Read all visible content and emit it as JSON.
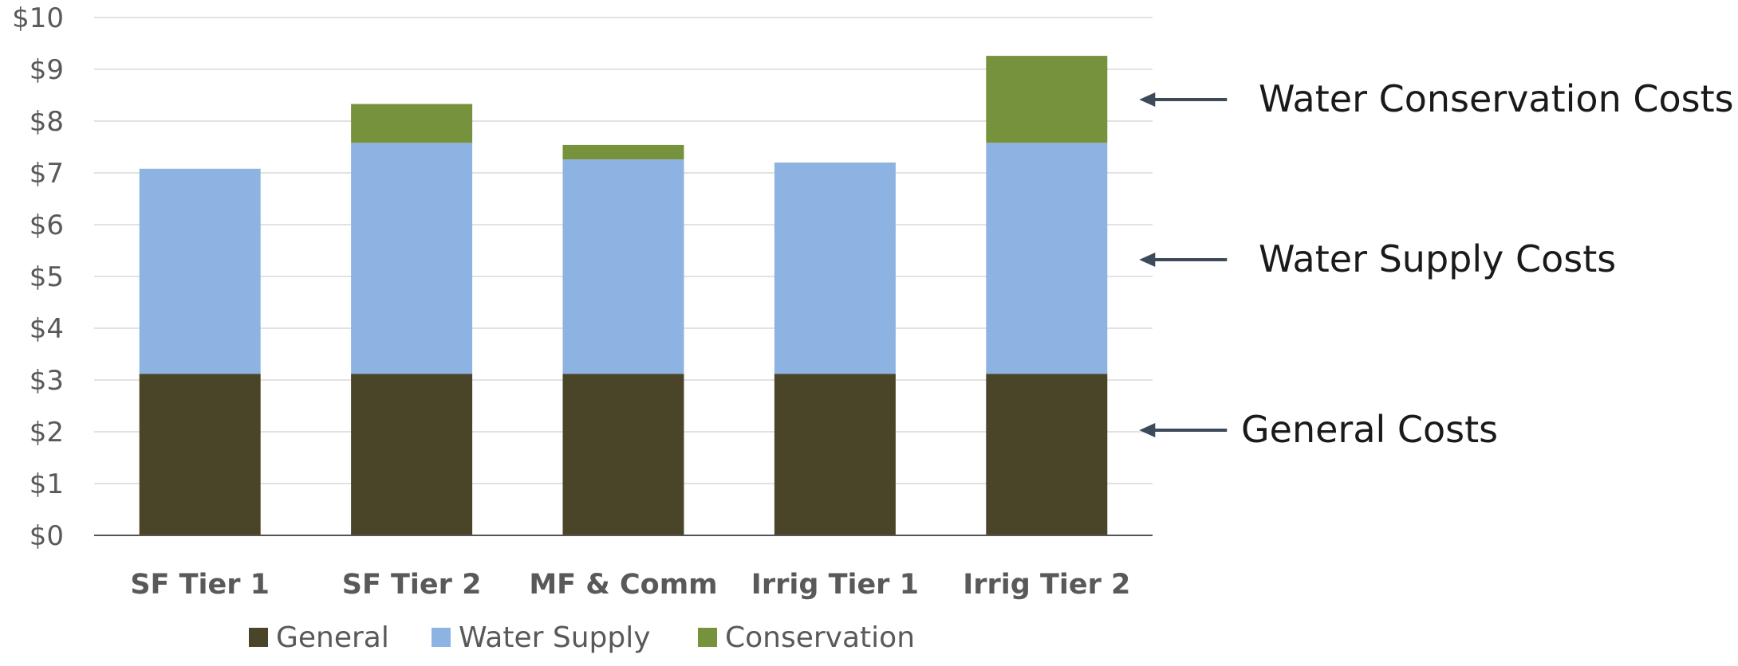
{
  "chart_data": {
    "type": "bar",
    "stacked": true,
    "categories": [
      "SF Tier 1",
      "SF Tier 2",
      "MF & Comm",
      "Irrig Tier 1",
      "Irrig Tier 2"
    ],
    "series": [
      {
        "name": "General",
        "color": "#4a4429",
        "values": [
          3.12,
          3.12,
          3.12,
          3.12,
          3.12
        ]
      },
      {
        "name": "Water Supply",
        "color": "#8db3e2",
        "values": [
          3.96,
          4.46,
          4.14,
          4.08,
          4.46
        ]
      },
      {
        "name": "Conservation",
        "color": "#76923c",
        "values": [
          0.0,
          0.75,
          0.28,
          0.0,
          1.68
        ]
      }
    ],
    "ylim": [
      0,
      10
    ],
    "y_ticks": [
      "$0",
      "$1",
      "$2",
      "$3",
      "$4",
      "$5",
      "$6",
      "$7",
      "$8",
      "$9",
      "$10"
    ],
    "grid": true,
    "legend_position": "bottom",
    "annotations": [
      {
        "text": "Water Conservation Costs",
        "points_to": "Conservation"
      },
      {
        "text": "Water Supply Costs",
        "points_to": "Water Supply"
      },
      {
        "text": "General Costs",
        "points_to": "General"
      }
    ],
    "gridline_color": "#d9d9d9",
    "axis_color": "#555555",
    "arrow_color": "#3c4a5c"
  }
}
